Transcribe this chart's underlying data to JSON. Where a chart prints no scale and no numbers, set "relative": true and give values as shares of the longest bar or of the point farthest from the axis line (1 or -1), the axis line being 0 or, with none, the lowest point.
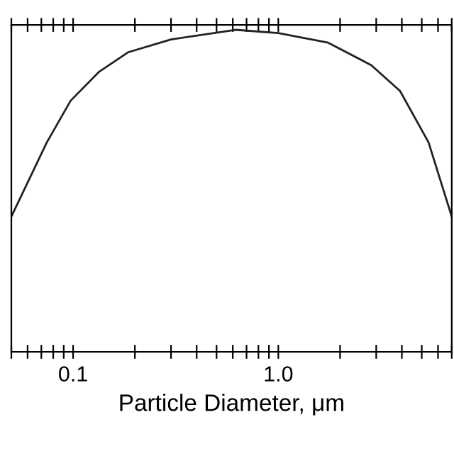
{
  "chart_data": {
    "type": "line",
    "xlabel": "Particle Diameter, μm",
    "relative": true,
    "log": "x",
    "x": [
      0.05,
      0.0744,
      0.0973,
      0.134,
      0.185,
      0.3,
      0.485,
      0.618,
      1.0,
      1.75,
      2.84,
      3.92,
      5.4,
      7
    ],
    "series": [
      {
        "color": "#222222",
        "values": [
          0.42,
          0.65,
          0.78,
          0.87,
          0.93,
          0.97,
          0.99,
          1.0,
          0.99,
          0.96,
          0.89,
          0.81,
          0.65,
          0.42
        ]
      }
    ],
    "xlim": [
      0.05,
      7
    ],
    "xticks": [
      {
        "value": 0.05,
        "label": null
      },
      {
        "value": 0.06,
        "label": null
      },
      {
        "value": 0.07,
        "label": null
      },
      {
        "value": 0.08,
        "label": null
      },
      {
        "value": 0.09,
        "label": null
      },
      0.1,
      {
        "value": 0.2,
        "label": null
      },
      {
        "value": 0.3,
        "label": null
      },
      {
        "value": 0.4,
        "label": null
      },
      {
        "value": 0.5,
        "label": null
      },
      {
        "value": 0.6,
        "label": null
      },
      {
        "value": 0.7,
        "label": null
      },
      {
        "value": 0.8,
        "label": null
      },
      {
        "value": 0.9,
        "label": null
      },
      {
        "value": 1,
        "label": "1.0"
      },
      {
        "value": 2,
        "label": null
      },
      {
        "value": 3,
        "label": null
      },
      {
        "value": 4,
        "label": null
      },
      {
        "value": 5,
        "label": null
      },
      {
        "value": 6,
        "label": null
      },
      {
        "value": 7,
        "label": null
      }
    ],
    "tick_labels": "x",
    "grid": false,
    "marker": "none",
    "line_style": "solid"
  }
}
